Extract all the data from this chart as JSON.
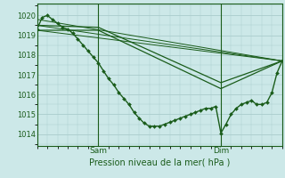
{
  "xlabel": "Pression niveau de la mer( hPa )",
  "bg_color": "#cce8e8",
  "grid_color": "#aacccc",
  "line_color": "#1a5c1a",
  "ylim": [
    1013.4,
    1020.6
  ],
  "xlim": [
    0,
    48
  ],
  "xtick_positions": [
    12,
    36
  ],
  "xtick_labels": [
    "Sam",
    "Dim"
  ],
  "ytick_positions": [
    1014,
    1015,
    1016,
    1017,
    1018,
    1019,
    1020
  ],
  "vline_positions": [
    12,
    36
  ],
  "main_line": {
    "x": [
      0,
      1,
      2,
      3,
      4,
      5,
      6,
      7,
      8,
      9,
      10,
      11,
      12,
      13,
      14,
      15,
      16,
      17,
      18,
      19,
      20,
      21,
      22,
      23,
      24,
      25,
      26,
      27,
      28,
      29,
      30,
      31,
      32,
      33,
      34,
      35,
      36,
      37,
      38,
      39,
      40,
      41,
      42,
      43,
      44,
      45,
      46,
      47,
      48
    ],
    "y": [
      1019.3,
      1019.9,
      1020.0,
      1019.8,
      1019.6,
      1019.4,
      1019.3,
      1019.1,
      1018.8,
      1018.5,
      1018.2,
      1017.9,
      1017.6,
      1017.2,
      1016.8,
      1016.5,
      1016.1,
      1015.8,
      1015.5,
      1015.1,
      1014.8,
      1014.55,
      1014.4,
      1014.4,
      1014.4,
      1014.5,
      1014.6,
      1014.7,
      1014.8,
      1014.9,
      1015.0,
      1015.1,
      1015.2,
      1015.3,
      1015.3,
      1015.4,
      1014.05,
      1014.5,
      1015.0,
      1015.3,
      1015.5,
      1015.6,
      1015.7,
      1015.5,
      1015.5,
      1015.6,
      1016.1,
      1017.1,
      1017.7
    ]
  },
  "straight_lines": [
    {
      "x": [
        0,
        48
      ],
      "y": [
        1019.25,
        1017.7
      ]
    },
    {
      "x": [
        0,
        48
      ],
      "y": [
        1019.5,
        1017.7
      ]
    },
    {
      "x": [
        0,
        48
      ],
      "y": [
        1019.8,
        1017.7
      ]
    }
  ],
  "envelope_lines": [
    {
      "x": [
        0,
        12,
        36,
        48
      ],
      "y": [
        1019.25,
        1019.25,
        1016.3,
        1017.7
      ]
    },
    {
      "x": [
        0,
        12,
        36,
        48
      ],
      "y": [
        1019.5,
        1019.4,
        1016.6,
        1017.7
      ]
    }
  ]
}
